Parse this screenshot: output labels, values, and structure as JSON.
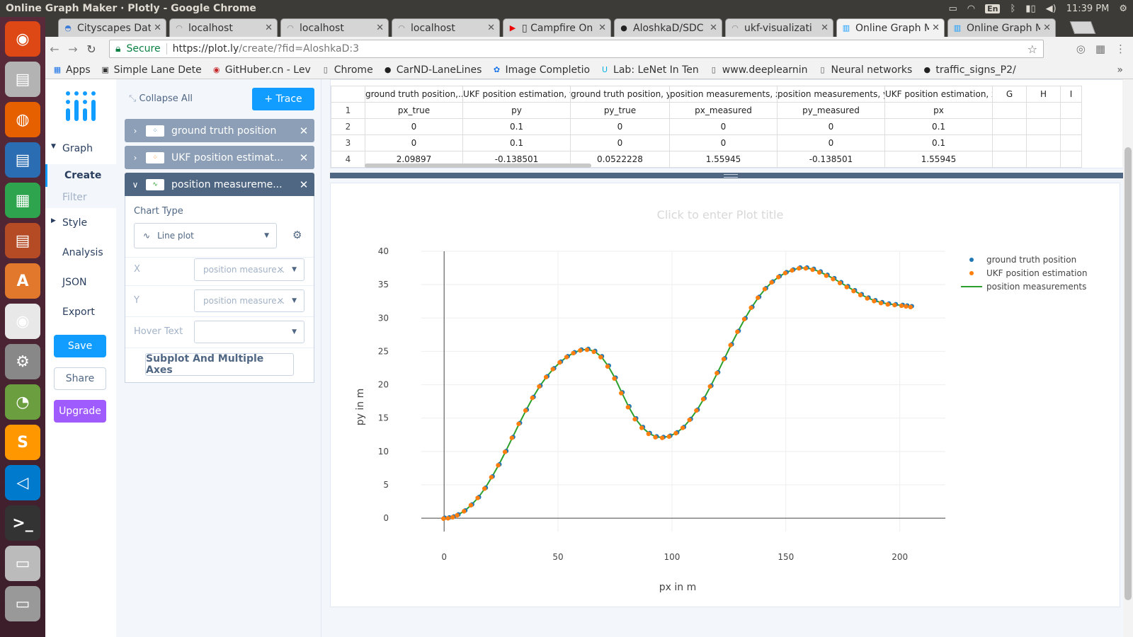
{
  "os": {
    "window_title": "Online Graph Maker · Plotly - Google Chrome",
    "keyboard": "En",
    "time": "11:39 PM"
  },
  "launcher": {
    "icons": [
      "ubuntu-icon",
      "files-icon",
      "firefox-icon",
      "writer-icon",
      "calc-icon",
      "impress-icon",
      "software-center-icon",
      "chrome-icon",
      "settings-icon",
      "disk-usage-icon",
      "sublime-icon",
      "vscode-icon",
      "terminal-icon",
      "drive-icon",
      "trash-icon"
    ]
  },
  "browser": {
    "tabs": [
      {
        "label": "Cityscapes Dat",
        "icon": "cityscapes-icon"
      },
      {
        "label": "localhost",
        "icon": "loading-icon"
      },
      {
        "label": "localhost",
        "icon": "loading-icon"
      },
      {
        "label": "localhost",
        "icon": "loading-icon"
      },
      {
        "label": "▯ Campfire On",
        "icon": "youtube-icon"
      },
      {
        "label": "AloshkaD/SDC",
        "icon": "github-icon"
      },
      {
        "label": "ukf-visualizati",
        "icon": "loading-icon"
      },
      {
        "label": "Online Graph M",
        "icon": "plotly-icon"
      },
      {
        "label": "Online Graph M",
        "icon": "plotly-icon"
      }
    ],
    "active_tab": 7,
    "secure_label": "Secure",
    "url_host": "https://plot.ly",
    "url_path": "/create/?fid=AloshkaD:3",
    "bookmarks": [
      {
        "label": "Apps",
        "icon": "apps-icon"
      },
      {
        "label": "Simple Lane Dete",
        "icon": "image-icon"
      },
      {
        "label": "GitHuber.cn - Lev",
        "icon": "githuber-icon"
      },
      {
        "label": "Chrome",
        "icon": "page-icon"
      },
      {
        "label": "CarND-LaneLines",
        "icon": "github-icon"
      },
      {
        "label": "Image Completio",
        "icon": "paw-icon"
      },
      {
        "label": "Lab: LeNet In Ten",
        "icon": "udacity-icon"
      },
      {
        "label": "www.deeplearnin",
        "icon": "page-icon"
      },
      {
        "label": "Neural networks",
        "icon": "page-icon"
      },
      {
        "label": "traffic_signs_P2/",
        "icon": "github-icon"
      }
    ],
    "more": "»"
  },
  "nav": {
    "graph": "Graph",
    "create": "Create",
    "filter": "Filter",
    "style": "Style",
    "analysis": "Analysis",
    "json": "JSON",
    "export": "Export",
    "save": "Save",
    "share": "Share",
    "upgrade": "Upgrade"
  },
  "panel": {
    "collapse_all": "Collapse All",
    "add_trace": "+ Trace",
    "traces": [
      {
        "name": "ground truth position",
        "icon": "scatter-icon"
      },
      {
        "name": "UKF position estimat...",
        "icon": "scatter-icon"
      },
      {
        "name": "position measureme...",
        "icon": "line-icon"
      }
    ],
    "chart_type_label": "Chart Type",
    "chart_type_value": "Line plot",
    "x_label": "X",
    "x_value": "position measure...",
    "y_label": "Y",
    "y_value": "position measure...",
    "hover_label": "Hover Text",
    "hover_value": "",
    "subplot_button": "Subplot And Multiple Axes"
  },
  "grid": {
    "headers": [
      "ground truth position,...",
      "UKF position estimation, y",
      "ground truth position, y",
      "position measurements, x",
      "position measurements, y",
      "UKF position estimation, x",
      "G",
      "H",
      "I"
    ],
    "rows": [
      {
        "n": "1",
        "cells": [
          "px_true",
          "py",
          "py_true",
          "px_measured",
          "py_measured",
          "px",
          "",
          "",
          ""
        ]
      },
      {
        "n": "2",
        "cells": [
          "0",
          "0.1",
          "0",
          "0",
          "0",
          "0.1",
          "",
          "",
          ""
        ]
      },
      {
        "n": "3",
        "cells": [
          "0",
          "0.1",
          "0",
          "0",
          "0",
          "0.1",
          "",
          "",
          ""
        ]
      },
      {
        "n": "4",
        "cells": [
          "2.09897",
          "-0.138501",
          "0.0522228",
          "1.55945",
          "-0.138501",
          "1.55945",
          "",
          "",
          ""
        ]
      }
    ]
  },
  "chart_data": {
    "type": "scatter",
    "title": "Click to enter Plot title",
    "xlabel": "px in m",
    "ylabel": "py in m",
    "xlim": [
      -10,
      220
    ],
    "ylim": [
      -2,
      40
    ],
    "xticks": [
      0,
      50,
      100,
      150,
      200
    ],
    "yticks": [
      0,
      5,
      10,
      15,
      20,
      25,
      30,
      35,
      40
    ],
    "grid": true,
    "legend_position": "top-right",
    "x": [
      0,
      2,
      4,
      6,
      9,
      12,
      15,
      18,
      21,
      24,
      27,
      30,
      33,
      36,
      39,
      42,
      45,
      48,
      51,
      54,
      57,
      60,
      63,
      66,
      69,
      72,
      75,
      78,
      81,
      84,
      87,
      90,
      93,
      96,
      99,
      102,
      105,
      108,
      111,
      114,
      117,
      120,
      123,
      126,
      129,
      132,
      135,
      138,
      141,
      144,
      147,
      150,
      153,
      156,
      159,
      162,
      165,
      168,
      171,
      174,
      177,
      180,
      183,
      186,
      189,
      192,
      195,
      198,
      201,
      203,
      205
    ],
    "series": [
      {
        "name": "ground truth position",
        "mode": "markers",
        "color": "#1f77b4",
        "offset": 0.15,
        "y": [
          0,
          0.05,
          0.2,
          0.5,
          1.1,
          2.0,
          3.1,
          4.5,
          6.2,
          8.0,
          10.0,
          12.1,
          14.2,
          16.2,
          18.1,
          19.8,
          21.2,
          22.4,
          23.4,
          24.2,
          24.8,
          25.2,
          25.3,
          25.0,
          24.2,
          22.8,
          21.0,
          18.8,
          16.7,
          14.9,
          13.6,
          12.7,
          12.2,
          12.1,
          12.3,
          12.8,
          13.6,
          14.8,
          16.2,
          17.9,
          19.8,
          21.8,
          23.9,
          26.0,
          28.0,
          29.9,
          31.6,
          33.1,
          34.4,
          35.4,
          36.2,
          36.8,
          37.2,
          37.5,
          37.5,
          37.3,
          36.9,
          36.4,
          35.9,
          35.3,
          34.7,
          34.1,
          33.5,
          33.0,
          32.6,
          32.3,
          32.1,
          32.0,
          31.9,
          31.8,
          31.7
        ]
      },
      {
        "name": "UKF position estimation",
        "mode": "markers",
        "color": "#ff7f0e",
        "offset": -0.15,
        "y": [
          0,
          0.05,
          0.2,
          0.5,
          1.1,
          2.0,
          3.1,
          4.5,
          6.2,
          8.0,
          10.0,
          12.1,
          14.2,
          16.2,
          18.1,
          19.8,
          21.2,
          22.4,
          23.4,
          24.2,
          24.8,
          25.2,
          25.3,
          25.0,
          24.2,
          22.8,
          21.0,
          18.8,
          16.7,
          14.9,
          13.6,
          12.7,
          12.2,
          12.1,
          12.3,
          12.8,
          13.6,
          14.8,
          16.2,
          17.9,
          19.8,
          21.8,
          23.9,
          26.0,
          28.0,
          29.9,
          31.6,
          33.1,
          34.4,
          35.4,
          36.2,
          36.8,
          37.2,
          37.5,
          37.5,
          37.3,
          36.9,
          36.4,
          35.9,
          35.3,
          34.7,
          34.1,
          33.5,
          33.0,
          32.6,
          32.3,
          32.1,
          32.0,
          31.9,
          31.8,
          31.7
        ]
      },
      {
        "name": "position measurements",
        "mode": "lines",
        "color": "#2ca02c",
        "offset": 0,
        "y": [
          0,
          0.05,
          0.2,
          0.5,
          1.1,
          2.0,
          3.1,
          4.5,
          6.2,
          8.0,
          10.0,
          12.1,
          14.2,
          16.2,
          18.1,
          19.8,
          21.2,
          22.4,
          23.4,
          24.2,
          24.8,
          25.2,
          25.3,
          25.0,
          24.2,
          22.8,
          21.0,
          18.8,
          16.7,
          14.9,
          13.6,
          12.7,
          12.2,
          12.1,
          12.3,
          12.8,
          13.6,
          14.8,
          16.2,
          17.9,
          19.8,
          21.8,
          23.9,
          26.0,
          28.0,
          29.9,
          31.6,
          33.1,
          34.4,
          35.4,
          36.2,
          36.8,
          37.2,
          37.5,
          37.5,
          37.3,
          36.9,
          36.4,
          35.9,
          35.3,
          34.7,
          34.1,
          33.5,
          33.0,
          32.6,
          32.3,
          32.1,
          32.0,
          31.9,
          31.8,
          31.7
        ]
      }
    ]
  }
}
